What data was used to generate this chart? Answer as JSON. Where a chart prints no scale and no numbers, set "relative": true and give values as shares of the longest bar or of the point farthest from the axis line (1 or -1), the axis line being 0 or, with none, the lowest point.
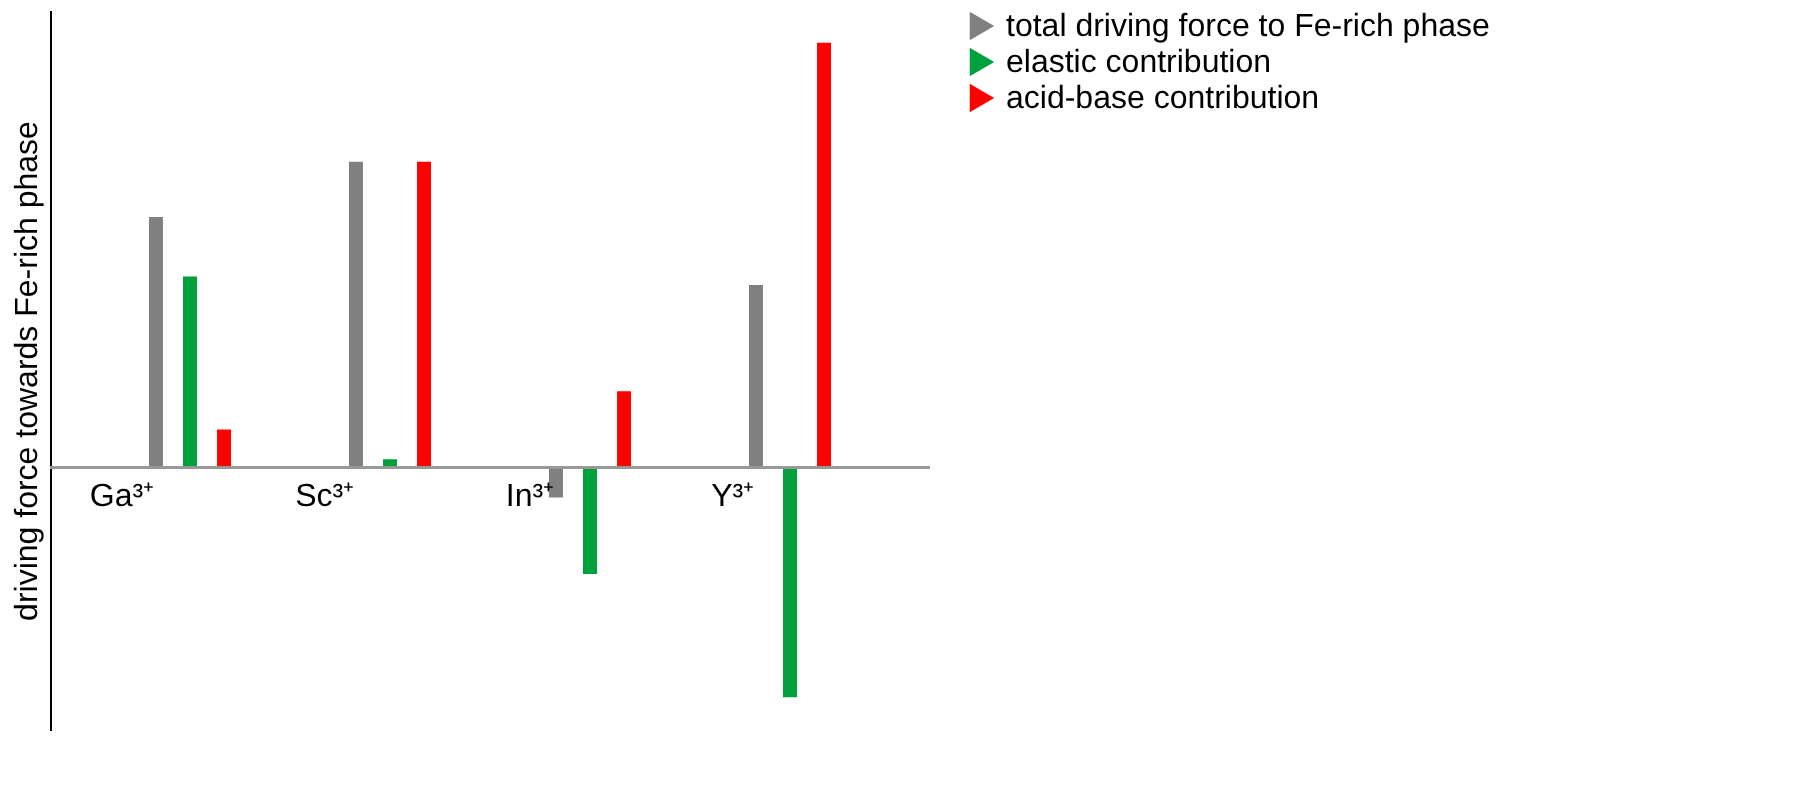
{
  "chart_data": {
    "type": "bar",
    "relative": true,
    "ylabel": "driving force towards Fe-rich phase",
    "categories": [
      "Ga³⁺",
      "Sc³⁺",
      "In³⁺",
      "Y³⁺"
    ],
    "legend": "right",
    "grid": false,
    "series": [
      {
        "name": "total driving force to Fe-rich phase",
        "color": "#808080",
        "values": [
          0.59,
          0.72,
          -0.07,
          0.43
        ]
      },
      {
        "name": "elastic contribution",
        "color": "#00a03c",
        "values": [
          0.45,
          0.02,
          -0.25,
          -0.54
        ]
      },
      {
        "name": "acid-base contribution",
        "color": "#ff0000",
        "values": [
          0.09,
          0.72,
          0.18,
          1
        ]
      }
    ]
  }
}
